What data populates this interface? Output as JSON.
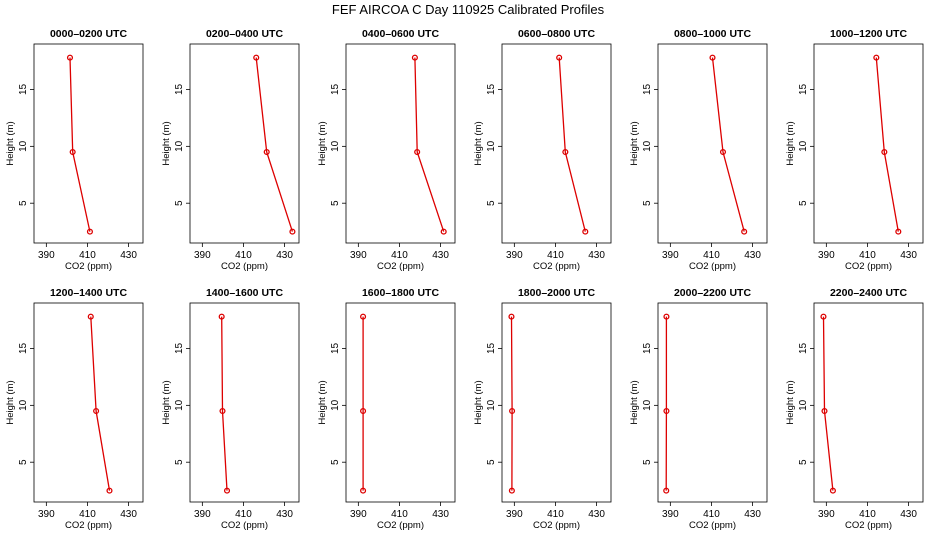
{
  "figure_title": "FEF AIRCOA C  Day 110925  Calibrated Profiles",
  "chart_data": [
    {
      "type": "line",
      "title": "0000–0200 UTC",
      "xlabel": "CO2 (ppm)",
      "ylabel": "Height (m)",
      "xlim": [
        384,
        437
      ],
      "ylim": [
        1.5,
        19
      ],
      "xticks": [
        "390",
        "410",
        "430"
      ],
      "yticks": [
        "5",
        "10",
        "15"
      ],
      "series": [
        {
          "points": [
            {
              "x": 411.2,
              "y": 2.5
            },
            {
              "x": 402.8,
              "y": 9.5
            },
            {
              "x": 401.5,
              "y": 17.8
            }
          ]
        }
      ]
    },
    {
      "type": "line",
      "title": "0200–0400 UTC",
      "xlabel": "CO2 (ppm)",
      "ylabel": "Height (m)",
      "xlim": [
        384,
        437
      ],
      "ylim": [
        1.5,
        19
      ],
      "xticks": [
        "390",
        "410",
        "430"
      ],
      "yticks": [
        "5",
        "10",
        "15"
      ],
      "series": [
        {
          "points": [
            {
              "x": 433.8,
              "y": 2.5
            },
            {
              "x": 421.3,
              "y": 9.5
            },
            {
              "x": 416.2,
              "y": 17.8
            }
          ]
        }
      ]
    },
    {
      "type": "line",
      "title": "0400–0600 UTC",
      "xlabel": "CO2 (ppm)",
      "ylabel": "Height (m)",
      "xlim": [
        384,
        437
      ],
      "ylim": [
        1.5,
        19
      ],
      "xticks": [
        "390",
        "410",
        "430"
      ],
      "yticks": [
        "5",
        "10",
        "15"
      ],
      "series": [
        {
          "points": [
            {
              "x": 431.5,
              "y": 2.5
            },
            {
              "x": 418.6,
              "y": 9.5
            },
            {
              "x": 417.5,
              "y": 17.8
            }
          ]
        }
      ]
    },
    {
      "type": "line",
      "title": "0600–0800 UTC",
      "xlabel": "CO2 (ppm)",
      "ylabel": "Height (m)",
      "xlim": [
        384,
        437
      ],
      "ylim": [
        1.5,
        19
      ],
      "xticks": [
        "390",
        "410",
        "430"
      ],
      "yticks": [
        "5",
        "10",
        "15"
      ],
      "series": [
        {
          "points": [
            {
              "x": 424.5,
              "y": 2.5
            },
            {
              "x": 414.8,
              "y": 9.5
            },
            {
              "x": 411.8,
              "y": 17.8
            }
          ]
        }
      ]
    },
    {
      "type": "line",
      "title": "0800–1000 UTC",
      "xlabel": "CO2 (ppm)",
      "ylabel": "Height (m)",
      "xlim": [
        384,
        437
      ],
      "ylim": [
        1.5,
        19
      ],
      "xticks": [
        "390",
        "410",
        "430"
      ],
      "yticks": [
        "5",
        "10",
        "15"
      ],
      "series": [
        {
          "points": [
            {
              "x": 425.9,
              "y": 2.5
            },
            {
              "x": 415.6,
              "y": 9.5
            },
            {
              "x": 410.5,
              "y": 17.8
            }
          ]
        }
      ]
    },
    {
      "type": "line",
      "title": "1000–1200 UTC",
      "xlabel": "CO2 (ppm)",
      "ylabel": "Height (m)",
      "xlim": [
        384,
        437
      ],
      "ylim": [
        1.5,
        19
      ],
      "xticks": [
        "390",
        "410",
        "430"
      ],
      "yticks": [
        "5",
        "10",
        "15"
      ],
      "series": [
        {
          "points": [
            {
              "x": 425.0,
              "y": 2.5
            },
            {
              "x": 418.2,
              "y": 9.5
            },
            {
              "x": 414.3,
              "y": 17.8
            }
          ]
        }
      ]
    },
    {
      "type": "line",
      "title": "1200–1400 UTC",
      "xlabel": "CO2 (ppm)",
      "ylabel": "Height (m)",
      "xlim": [
        384,
        437
      ],
      "ylim": [
        1.5,
        19
      ],
      "xticks": [
        "390",
        "410",
        "430"
      ],
      "yticks": [
        "5",
        "10",
        "15"
      ],
      "series": [
        {
          "points": [
            {
              "x": 420.7,
              "y": 2.5
            },
            {
              "x": 414.2,
              "y": 9.5
            },
            {
              "x": 411.6,
              "y": 17.8
            }
          ]
        }
      ]
    },
    {
      "type": "line",
      "title": "1400–1600 UTC",
      "xlabel": "CO2 (ppm)",
      "ylabel": "Height (m)",
      "xlim": [
        384,
        437
      ],
      "ylim": [
        1.5,
        19
      ],
      "xticks": [
        "390",
        "410",
        "430"
      ],
      "yticks": [
        "5",
        "10",
        "15"
      ],
      "series": [
        {
          "points": [
            {
              "x": 402.0,
              "y": 2.5
            },
            {
              "x": 399.8,
              "y": 9.5
            },
            {
              "x": 399.4,
              "y": 17.8
            }
          ]
        }
      ]
    },
    {
      "type": "line",
      "title": "1600–1800 UTC",
      "xlabel": "CO2 (ppm)",
      "ylabel": "Height (m)",
      "xlim": [
        384,
        437
      ],
      "ylim": [
        1.5,
        19
      ],
      "xticks": [
        "390",
        "410",
        "430"
      ],
      "yticks": [
        "5",
        "10",
        "15"
      ],
      "series": [
        {
          "points": [
            {
              "x": 392.3,
              "y": 2.5
            },
            {
              "x": 392.3,
              "y": 9.5
            },
            {
              "x": 392.3,
              "y": 17.8
            }
          ]
        }
      ]
    },
    {
      "type": "line",
      "title": "1800–2000 UTC",
      "xlabel": "CO2 (ppm)",
      "ylabel": "Height (m)",
      "xlim": [
        384,
        437
      ],
      "ylim": [
        1.5,
        19
      ],
      "xticks": [
        "390",
        "410",
        "430"
      ],
      "yticks": [
        "5",
        "10",
        "15"
      ],
      "series": [
        {
          "points": [
            {
              "x": 388.8,
              "y": 2.5
            },
            {
              "x": 388.9,
              "y": 9.5
            },
            {
              "x": 388.6,
              "y": 17.8
            }
          ]
        }
      ]
    },
    {
      "type": "line",
      "title": "2000–2200 UTC",
      "xlabel": "CO2 (ppm)",
      "ylabel": "Height (m)",
      "xlim": [
        384,
        437
      ],
      "ylim": [
        1.5,
        19
      ],
      "xticks": [
        "390",
        "410",
        "430"
      ],
      "yticks": [
        "5",
        "10",
        "15"
      ],
      "series": [
        {
          "points": [
            {
              "x": 388.0,
              "y": 2.5
            },
            {
              "x": 388.1,
              "y": 9.5
            },
            {
              "x": 388.1,
              "y": 17.8
            }
          ]
        }
      ]
    },
    {
      "type": "line",
      "title": "2200–2400 UTC",
      "xlabel": "CO2 (ppm)",
      "ylabel": "Height (m)",
      "xlim": [
        384,
        437
      ],
      "ylim": [
        1.5,
        19
      ],
      "xticks": [
        "390",
        "410",
        "430"
      ],
      "yticks": [
        "5",
        "10",
        "15"
      ],
      "series": [
        {
          "points": [
            {
              "x": 393.2,
              "y": 2.5
            },
            {
              "x": 389.1,
              "y": 9.5
            },
            {
              "x": 388.6,
              "y": 17.8
            }
          ]
        }
      ]
    }
  ],
  "colors": {
    "line": "#dd0000",
    "marker": "#dd0000",
    "axis": "#000000"
  }
}
